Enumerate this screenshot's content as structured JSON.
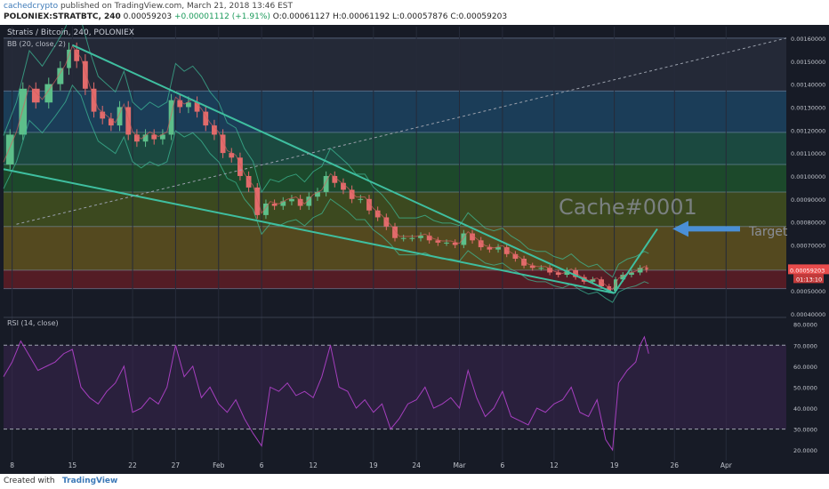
{
  "header": {
    "author": "cachedcrypto",
    "published": "published on TradingView.com, March 21, 2018 13:46 EST",
    "symbol_line": "POLONIEX:STRATBTC, 240",
    "price": "0.00059203",
    "change": "+0.00001112 (+1.91%)",
    "ohlc": "O:0.00061127 H:0.00061192 L:0.00057876 C:0.00059203"
  },
  "legend": {
    "title": "Stratis / Bitcoin, 240, POLONIEX",
    "bb": "BB (20, close, 2)",
    "rsi": "RSI (14, close)"
  },
  "annotations": {
    "watermark": "Cache#0001",
    "target": "Target"
  },
  "footer": {
    "created": "Created with",
    "brand": "TradingView"
  },
  "chart_data": [
    {
      "type": "line",
      "name": "price",
      "ylim": [
        0.0004,
        0.00165
      ],
      "y_ticks": [
        "0.00160000",
        "0.00150000",
        "0.00140000",
        "0.00130000",
        "0.00120000",
        "0.00110000",
        "0.00100000",
        "0.00090000",
        "0.00080000",
        "0.00070000",
        "0.00060000",
        "0.00050000",
        "0.00040000"
      ],
      "y_tick_values": [
        0.0016,
        0.0015,
        0.0014,
        0.0013,
        0.0012,
        0.0011,
        0.001,
        0.0009,
        0.0008,
        0.0007,
        0.0006,
        0.0005,
        0.0004
      ],
      "price_label": "0.00059203",
      "countdown_label": "01:13:10",
      "x_labels": [
        "8",
        "15",
        "22",
        "27",
        "Feb",
        "6",
        "12",
        "19",
        "24",
        "Mar",
        "6",
        "12",
        "19",
        "26",
        "Apr"
      ],
      "x_label_days": [
        8,
        15,
        22,
        27,
        32,
        37,
        43,
        50,
        55,
        60,
        65,
        71,
        78,
        85,
        91
      ],
      "x_range_days": [
        7,
        98
      ],
      "last_price": 0.00059203,
      "price_points": [
        [
          7.0,
          0.00105
        ],
        [
          8.5,
          0.00118
        ],
        [
          10.0,
          0.00138
        ],
        [
          11.5,
          0.00132
        ],
        [
          13.0,
          0.0014
        ],
        [
          14.2,
          0.00147
        ],
        [
          15.0,
          0.00155
        ],
        [
          16.0,
          0.0015
        ],
        [
          17.0,
          0.00138
        ],
        [
          18.0,
          0.00128
        ],
        [
          19.0,
          0.00125
        ],
        [
          20.0,
          0.00122
        ],
        [
          21.0,
          0.0013
        ],
        [
          22.0,
          0.00118
        ],
        [
          23.0,
          0.00115
        ],
        [
          24.0,
          0.00118
        ],
        [
          25.0,
          0.00116
        ],
        [
          26.0,
          0.00118
        ],
        [
          27.0,
          0.00133
        ],
        [
          28.0,
          0.0013
        ],
        [
          29.0,
          0.00132
        ],
        [
          30.0,
          0.00128
        ],
        [
          31.0,
          0.00122
        ],
        [
          32.0,
          0.00118
        ],
        [
          33.0,
          0.0011
        ],
        [
          34.0,
          0.00108
        ],
        [
          35.0,
          0.001
        ],
        [
          36.0,
          0.00095
        ],
        [
          37.0,
          0.00083
        ],
        [
          38.0,
          0.00088
        ],
        [
          39.0,
          0.00087
        ],
        [
          40.0,
          0.00089
        ],
        [
          41.0,
          0.0009
        ],
        [
          42.0,
          0.00087
        ],
        [
          43.0,
          0.00091
        ],
        [
          44.0,
          0.00093
        ],
        [
          45.0,
          0.001
        ],
        [
          46.0,
          0.00097
        ],
        [
          47.0,
          0.00094
        ],
        [
          48.0,
          0.0009
        ],
        [
          49.0,
          0.0009
        ],
        [
          50.0,
          0.00085
        ],
        [
          51.0,
          0.00082
        ],
        [
          52.0,
          0.00078
        ],
        [
          53.0,
          0.00073
        ],
        [
          54.0,
          0.00073
        ],
        [
          55.0,
          0.00073
        ],
        [
          56.0,
          0.00074
        ],
        [
          57.0,
          0.00072
        ],
        [
          58.0,
          0.00071
        ],
        [
          59.0,
          0.00071
        ],
        [
          60.0,
          0.0007
        ],
        [
          61.0,
          0.00075
        ],
        [
          62.0,
          0.00072
        ],
        [
          63.0,
          0.00069
        ],
        [
          64.0,
          0.00068
        ],
        [
          65.0,
          0.00069
        ],
        [
          66.0,
          0.00066
        ],
        [
          67.0,
          0.00064
        ],
        [
          68.0,
          0.00061
        ],
        [
          69.0,
          0.0006
        ],
        [
          70.0,
          0.0006
        ],
        [
          71.0,
          0.00058
        ],
        [
          72.0,
          0.00057
        ],
        [
          73.0,
          0.00059
        ],
        [
          74.0,
          0.00056
        ],
        [
          75.0,
          0.00054
        ],
        [
          76.0,
          0.00055
        ],
        [
          77.0,
          0.00052
        ],
        [
          77.8,
          0.0005
        ],
        [
          78.5,
          0.00055
        ],
        [
          79.5,
          0.00057
        ],
        [
          80.5,
          0.00058
        ],
        [
          81.5,
          0.0006
        ],
        [
          82.0,
          0.00059203
        ]
      ],
      "wedge_lines": [
        {
          "from": [
            7.0,
            0.00103
          ],
          "to": [
            78.0,
            0.00049
          ]
        },
        {
          "from": [
            15.0,
            0.00157
          ],
          "to": [
            78.0,
            0.00049
          ]
        },
        {
          "from": [
            78.0,
            0.00049
          ],
          "to": [
            83.0,
            0.00077
          ]
        }
      ],
      "dotted_line": {
        "from": [
          8.5,
          0.00079
        ],
        "to": [
          98,
          0.0016
        ]
      },
      "fib_levels": [
        0.0016,
        0.00137,
        0.00119,
        0.00105,
        0.00093,
        0.00078,
        0.00059,
        0.00051
      ]
    },
    {
      "type": "line",
      "name": "rsi",
      "ylim": [
        15,
        82
      ],
      "y_ticks": [
        "80.0000",
        "70.0000",
        "60.0000",
        "50.0000",
        "40.0000",
        "30.0000",
        "20.0000"
      ],
      "y_tick_values": [
        80,
        70,
        60,
        50,
        40,
        30,
        20
      ],
      "bands": [
        30,
        70
      ],
      "rsi_points": [
        [
          7.0,
          55
        ],
        [
          8.0,
          62
        ],
        [
          9.0,
          72
        ],
        [
          10.0,
          65
        ],
        [
          11.0,
          58
        ],
        [
          12.0,
          60
        ],
        [
          13.0,
          62
        ],
        [
          14.0,
          66
        ],
        [
          15.0,
          68
        ],
        [
          16.0,
          50
        ],
        [
          17.0,
          45
        ],
        [
          18.0,
          42
        ],
        [
          19.0,
          48
        ],
        [
          20.0,
          52
        ],
        [
          21.0,
          60
        ],
        [
          22.0,
          38
        ],
        [
          23.0,
          40
        ],
        [
          24.0,
          45
        ],
        [
          25.0,
          42
        ],
        [
          26.0,
          50
        ],
        [
          27.0,
          70
        ],
        [
          28.0,
          55
        ],
        [
          29.0,
          60
        ],
        [
          30.0,
          45
        ],
        [
          31.0,
          50
        ],
        [
          32.0,
          42
        ],
        [
          33.0,
          38
        ],
        [
          34.0,
          44
        ],
        [
          35.0,
          35
        ],
        [
          36.0,
          28
        ],
        [
          37.0,
          22
        ],
        [
          38.0,
          50
        ],
        [
          39.0,
          48
        ],
        [
          40.0,
          52
        ],
        [
          41.0,
          46
        ],
        [
          42.0,
          48
        ],
        [
          43.0,
          45
        ],
        [
          44.0,
          55
        ],
        [
          45.0,
          70
        ],
        [
          46.0,
          50
        ],
        [
          47.0,
          48
        ],
        [
          48.0,
          40
        ],
        [
          49.0,
          44
        ],
        [
          50.0,
          38
        ],
        [
          51.0,
          42
        ],
        [
          52.0,
          30
        ],
        [
          53.0,
          35
        ],
        [
          54.0,
          42
        ],
        [
          55.0,
          44
        ],
        [
          56.0,
          50
        ],
        [
          57.0,
          40
        ],
        [
          58.0,
          42
        ],
        [
          59.0,
          45
        ],
        [
          60.0,
          40
        ],
        [
          61.0,
          58
        ],
        [
          62.0,
          45
        ],
        [
          63.0,
          36
        ],
        [
          64.0,
          40
        ],
        [
          65.0,
          48
        ],
        [
          66.0,
          36
        ],
        [
          67.0,
          34
        ],
        [
          68.0,
          32
        ],
        [
          69.0,
          40
        ],
        [
          70.0,
          38
        ],
        [
          71.0,
          42
        ],
        [
          72.0,
          44
        ],
        [
          73.0,
          50
        ],
        [
          74.0,
          38
        ],
        [
          75.0,
          36
        ],
        [
          76.0,
          44
        ],
        [
          77.0,
          25
        ],
        [
          77.8,
          20
        ],
        [
          78.5,
          52
        ],
        [
          79.5,
          58
        ],
        [
          80.5,
          62
        ],
        [
          81.0,
          70
        ],
        [
          81.5,
          74
        ],
        [
          82.0,
          66
        ]
      ]
    }
  ],
  "colors": {
    "background": "#171b26",
    "grid": "#262b3a",
    "candle_up": "#5dbf8a",
    "candle_down": "#e26b6b",
    "wedge": "#3fbfa0",
    "rsi": "#a63fbf",
    "target_arrow": "#4a8fd6",
    "price_label_bg": "#e84c4c"
  }
}
